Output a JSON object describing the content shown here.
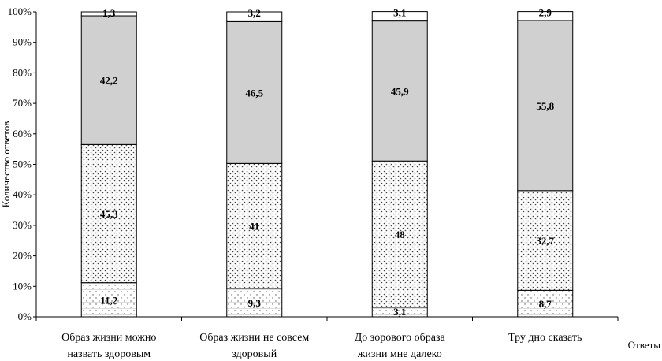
{
  "chart_data": {
    "type": "bar",
    "stacked": true,
    "percent_stacked": true,
    "title": "",
    "xlabel": "Ответы",
    "ylabel": "Количество ответов",
    "ylim": [
      0,
      100
    ],
    "yticks": [
      "0%",
      "10%",
      "20%",
      "30%",
      "40%",
      "50%",
      "60%",
      "70%",
      "80%",
      "90%",
      "100%"
    ],
    "categories": [
      [
        "Образ жизни можно",
        "назвать здоровым"
      ],
      [
        "Образ жизни не совсем",
        "здоровый"
      ],
      [
        "До зорового образа",
        "жизни мне далеко"
      ],
      [
        "Тру дно сказать"
      ]
    ],
    "series": [
      {
        "values": [
          11.2,
          9.3,
          3.1,
          8.7
        ],
        "labels": [
          "11,2",
          "9,3",
          "3,1",
          "8,7"
        ],
        "fill": "dots-light"
      },
      {
        "values": [
          45.3,
          41,
          48,
          32.7
        ],
        "labels": [
          "45,3",
          "41",
          "48",
          "32,7"
        ],
        "fill": "dots-dense"
      },
      {
        "values": [
          42.2,
          46.5,
          45.9,
          55.8
        ],
        "labels": [
          "42,2",
          "46,5",
          "45,9",
          "55,8"
        ],
        "fill": "#d0d0d0"
      },
      {
        "values": [
          1.3,
          3.2,
          3.1,
          2.9
        ],
        "labels": [
          "1,3",
          "3,2",
          "3,1",
          "2,9"
        ],
        "fill": "#ffffff"
      }
    ],
    "grid": false,
    "legend": "none"
  }
}
